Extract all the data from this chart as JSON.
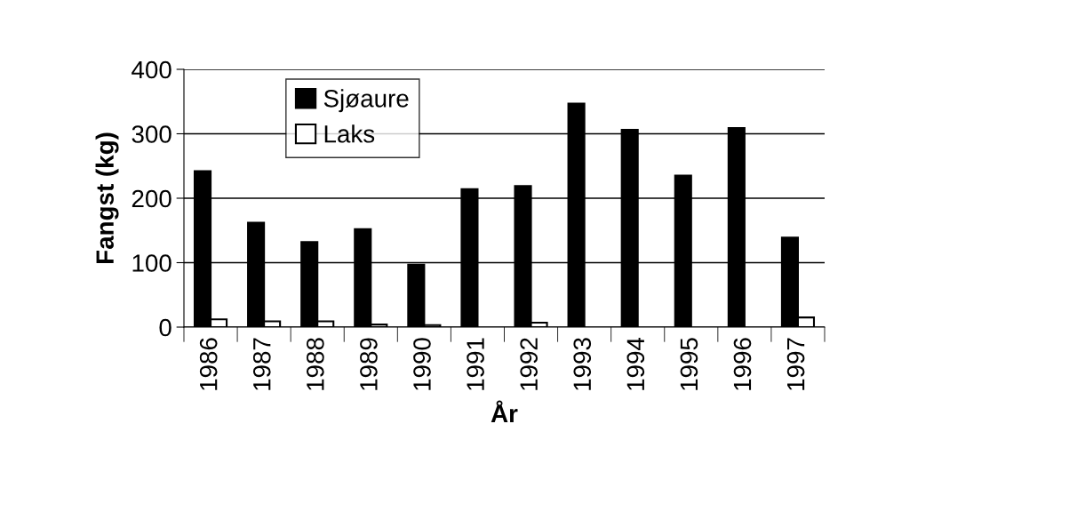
{
  "chart_data": {
    "type": "bar",
    "xlabel": "År",
    "ylabel": "Fangst (kg)",
    "categories": [
      "1986",
      "1987",
      "1988",
      "1989",
      "1990",
      "1991",
      "1992",
      "1993",
      "1994",
      "1995",
      "1996",
      "1997"
    ],
    "series": [
      {
        "name": "Sjøaure",
        "color": "#000000",
        "values": [
          242,
          162,
          132,
          152,
          97,
          214,
          219,
          347,
          306,
          235,
          309,
          139
        ]
      },
      {
        "name": "Laks",
        "color": "#ffffff",
        "values": [
          12,
          9,
          9,
          4,
          3,
          0,
          7,
          0,
          0,
          0,
          0,
          15
        ]
      }
    ],
    "ylim": [
      0,
      400
    ],
    "yticks": [
      0,
      100,
      200,
      300,
      400
    ],
    "grid": "y",
    "legend": "top left"
  }
}
